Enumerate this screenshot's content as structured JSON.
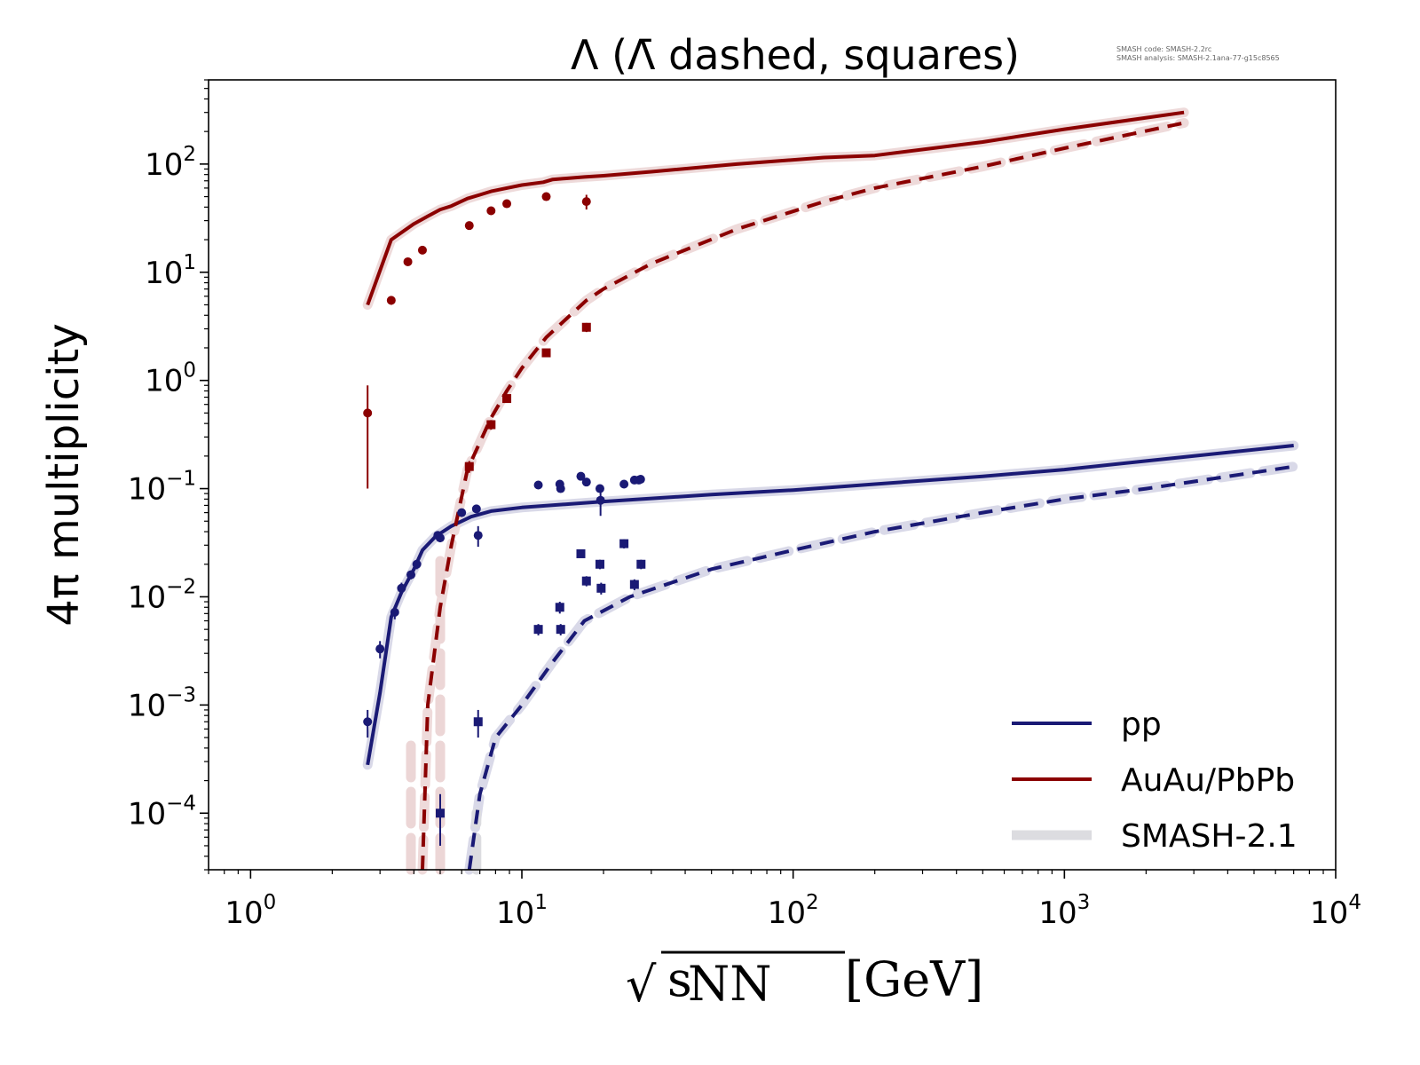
{
  "chart_data": {
    "type": "line",
    "title": "Λ (Λ̄ dashed, squares)",
    "xlabel": {
      "prefix": "√",
      "s": "s",
      "sub": "NN",
      "unit": " [GeV]"
    },
    "ylabel": "4π multiplicity",
    "xscale": "log",
    "yscale": "log",
    "xlim": [
      0.7,
      10000
    ],
    "ylim": [
      3e-05,
      600
    ],
    "xticks": [
      {
        "value": 1,
        "base": "10",
        "exp": "0"
      },
      {
        "value": 10,
        "base": "10",
        "exp": "1"
      },
      {
        "value": 100,
        "base": "10",
        "exp": "2"
      },
      {
        "value": 1000,
        "base": "10",
        "exp": "3"
      },
      {
        "value": 10000,
        "base": "10",
        "exp": "4"
      }
    ],
    "yticks": [
      {
        "value": 0.0001,
        "base": "10",
        "exp": "−4"
      },
      {
        "value": 0.001,
        "base": "10",
        "exp": "−3"
      },
      {
        "value": 0.01,
        "base": "10",
        "exp": "−2"
      },
      {
        "value": 0.1,
        "base": "10",
        "exp": "−1"
      },
      {
        "value": 1,
        "base": "10",
        "exp": "0"
      },
      {
        "value": 10,
        "base": "10",
        "exp": "1"
      },
      {
        "value": 100,
        "base": "10",
        "exp": "2"
      }
    ],
    "grid": false,
    "legend_position": "lower-right",
    "legend": [
      {
        "label": "pp",
        "color": "#1a1a75",
        "style": "solid"
      },
      {
        "label": "AuAu/PbPb",
        "color": "#8b0000",
        "style": "solid"
      },
      {
        "label": "SMASH-2.1",
        "color": "#dcdce0",
        "style": "band"
      }
    ],
    "corner_info": [
      "SMASH code:      SMASH-2.2rc",
      "SMASH analysis: SMASH-2.1ana-77-g15c8565"
    ],
    "series": [
      {
        "key": "pp_lambda",
        "color": "#1a1a75",
        "dashed": false,
        "band_color": "#d5d5e6",
        "x": [
          2.7,
          3.0,
          3.3,
          3.6,
          4.0,
          4.3,
          4.8,
          5.5,
          6.5,
          7.7,
          10,
          20,
          50,
          100,
          200,
          500,
          1000,
          2000,
          7000
        ],
        "y": [
          0.00028,
          0.0013,
          0.0065,
          0.011,
          0.018,
          0.027,
          0.036,
          0.045,
          0.055,
          0.062,
          0.067,
          0.076,
          0.088,
          0.097,
          0.11,
          0.13,
          0.15,
          0.18,
          0.25
        ]
      },
      {
        "key": "pp_antilambda",
        "color": "#1a1a75",
        "dashed": true,
        "band_color": "#d5d5e6",
        "x": [
          6.4,
          7.0,
          8.0,
          10,
          13,
          17,
          25,
          50,
          100,
          200,
          500,
          1000,
          2000,
          7000
        ],
        "y": [
          3e-05,
          0.00015,
          0.0005,
          0.001,
          0.0025,
          0.006,
          0.01,
          0.018,
          0.027,
          0.04,
          0.06,
          0.08,
          0.1,
          0.16
        ]
      },
      {
        "key": "aa_lambda",
        "color": "#8b0000",
        "dashed": false,
        "band_color": "#ecd6d6",
        "x": [
          2.7,
          3.3,
          4.0,
          4.5,
          5.0,
          5.5,
          6.3,
          7.0,
          7.7,
          8.8,
          10,
          12,
          13,
          17,
          20,
          30,
          62,
          130,
          200,
          500,
          1000,
          2760
        ],
        "y": [
          5,
          20,
          28,
          33,
          38,
          41,
          48,
          52,
          56,
          60,
          64,
          68,
          72,
          76,
          78,
          85,
          100,
          115,
          120,
          160,
          210,
          300
        ]
      },
      {
        "key": "aa_antilambda",
        "color": "#8b0000",
        "dashed": true,
        "band_color": "#ecd6d6",
        "x": [
          4.3,
          4.5,
          5.0,
          5.5,
          6.3,
          7.7,
          8.8,
          10,
          12.3,
          17.3,
          20,
          30,
          62,
          130,
          200,
          500,
          1000,
          2760
        ],
        "y": [
          3e-05,
          0.001,
          0.008,
          0.03,
          0.15,
          0.45,
          0.8,
          1.3,
          2.5,
          5.5,
          7,
          12,
          25,
          45,
          60,
          95,
          140,
          240
        ]
      }
    ],
    "points": [
      {
        "key": "pp_lambda_data",
        "color": "#1a1a75",
        "marker": "circle",
        "x": [
          2.7,
          3.0,
          3.4,
          3.6,
          3.9,
          4.1,
          4.9,
          5.0,
          6.0,
          6.8,
          6.9,
          11.5,
          13.8,
          13.9,
          16.5,
          17.3,
          19.4,
          19.5,
          23.8,
          26,
          27,
          27.4
        ],
        "y": [
          0.0007,
          0.0033,
          0.0072,
          0.012,
          0.016,
          0.02,
          0.037,
          0.035,
          0.06,
          0.065,
          0.037,
          0.108,
          0.11,
          0.1,
          0.13,
          0.115,
          0.1,
          0.078,
          0.11,
          0.12,
          0.12,
          0.122
        ],
        "err": [
          0.0002,
          0.0006,
          0.001,
          0.0015,
          0.0015,
          0.002,
          0.003,
          0.003,
          0.005,
          0.005,
          0.008,
          0.006,
          0.008,
          0.007,
          0.008,
          0.007,
          0.007,
          0.022,
          0.006,
          0.008,
          0.008,
          0.008
        ]
      },
      {
        "key": "pp_antilambda_data",
        "color": "#1a1a75",
        "marker": "square",
        "x": [
          5.0,
          6.9,
          11.5,
          13.8,
          13.9,
          16.5,
          17.3,
          19.4,
          19.6,
          23.8,
          26,
          27.5
        ],
        "y": [
          0.0001,
          0.0007,
          0.005,
          0.008,
          0.005,
          0.025,
          0.014,
          0.02,
          0.012,
          0.031,
          0.013,
          0.02
        ],
        "err": [
          5e-05,
          0.0002,
          0.0006,
          0.001,
          0.0006,
          0.002,
          0.0015,
          0.002,
          0.0015,
          0.003,
          0.0015,
          0.002
        ]
      },
      {
        "key": "aa_lambda_data",
        "color": "#8b0000",
        "marker": "circle",
        "x": [
          2.7,
          3.3,
          3.8,
          4.3,
          6.4,
          7.7,
          8.8,
          12.3,
          17.3
        ],
        "y": [
          0.5,
          5.5,
          12.5,
          16,
          27,
          37,
          43,
          50,
          45
        ],
        "err": [
          0.4,
          0.5,
          1,
          1.2,
          2,
          3,
          3,
          4,
          7
        ]
      },
      {
        "key": "aa_antilambda_data",
        "color": "#8b0000",
        "marker": "square",
        "x": [
          6.4,
          7.7,
          8.8,
          12.3,
          17.3
        ],
        "y": [
          0.16,
          0.39,
          0.68,
          1.8,
          3.1
        ],
        "err": [
          0.02,
          0.04,
          0.06,
          0.15,
          0.3
        ]
      }
    ],
    "bands": [
      {
        "key": "pp_antilambda_band_spike",
        "color": "#dcdce0",
        "x": 6.8,
        "y": [
          3e-05,
          0.0001
        ]
      },
      {
        "key": "aa_antilambda_band_spike_1",
        "color": "#ecd6d6",
        "x": 3.9,
        "y": [
          3e-05,
          0.0005
        ]
      },
      {
        "key": "aa_antilambda_band_spike_2",
        "color": "#ecd6d6",
        "x": 5.0,
        "y": [
          3e-05,
          0.028
        ]
      }
    ]
  }
}
